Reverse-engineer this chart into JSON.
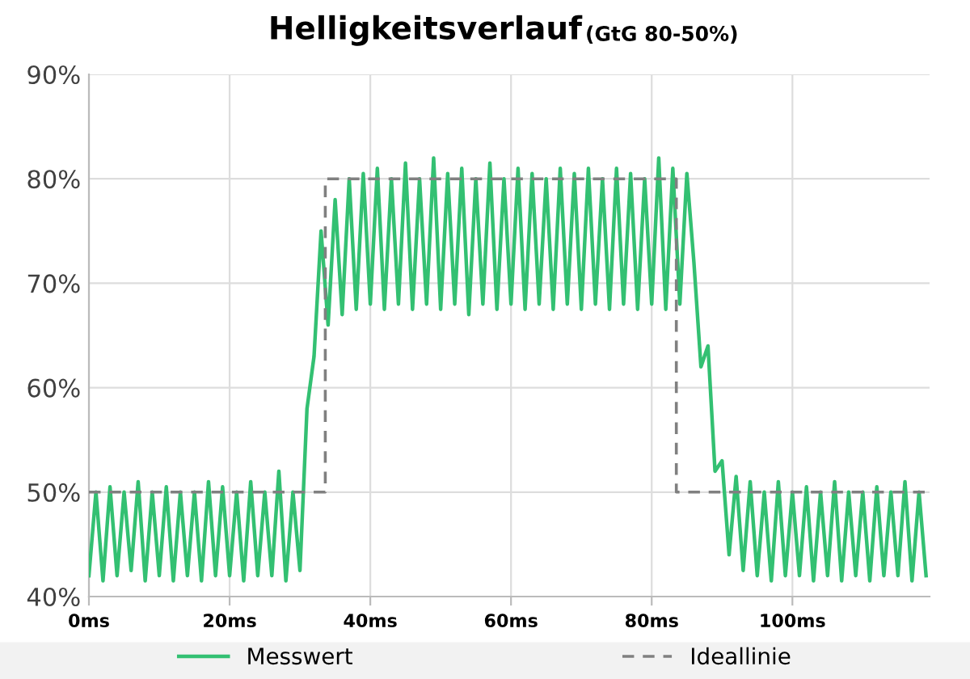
{
  "chart_data": {
    "type": "line",
    "title": "Helligkeitsverlauf",
    "subtitle": "(GtG 80-50%)",
    "xlim": [
      0,
      119.5
    ],
    "ylim": [
      40,
      90
    ],
    "xticks": [
      {
        "value": 0,
        "label": "0ms"
      },
      {
        "value": 20,
        "label": "20ms"
      },
      {
        "value": 40,
        "label": "40ms"
      },
      {
        "value": 60,
        "label": "60ms"
      },
      {
        "value": 80,
        "label": "80ms"
      },
      {
        "value": 100,
        "label": "100ms"
      }
    ],
    "yticks": [
      {
        "value": 40,
        "label": "40%"
      },
      {
        "value": 50,
        "label": "50%"
      },
      {
        "value": 60,
        "label": "60%"
      },
      {
        "value": 70,
        "label": "70%"
      },
      {
        "value": 80,
        "label": "80%"
      },
      {
        "value": 90,
        "label": "90%"
      }
    ],
    "grid": true,
    "legend": "bottom",
    "series": [
      {
        "name": "Messwert",
        "color": "#33c072",
        "line_style": "solid",
        "x": [
          0,
          1,
          2,
          3,
          4,
          5,
          6,
          7,
          8,
          9,
          10,
          11,
          12,
          13,
          14,
          15,
          16,
          17,
          18,
          19,
          20,
          21,
          22,
          23,
          24,
          25,
          26,
          27,
          28,
          29,
          30,
          31,
          32,
          33,
          34,
          35,
          36,
          37,
          38,
          39,
          40,
          41,
          42,
          43,
          44,
          45,
          46,
          47,
          48,
          49,
          50,
          51,
          52,
          53,
          54,
          55,
          56,
          57,
          58,
          59,
          60,
          61,
          62,
          63,
          64,
          65,
          66,
          67,
          68,
          69,
          70,
          71,
          72,
          73,
          74,
          75,
          76,
          77,
          78,
          79,
          80,
          81,
          82,
          83,
          84,
          85,
          86,
          87,
          88,
          89,
          90,
          91,
          92,
          93,
          94,
          95,
          96,
          97,
          98,
          99,
          100,
          101,
          102,
          103,
          104,
          105,
          106,
          107,
          108,
          109,
          110,
          111,
          112,
          113,
          114,
          115,
          116,
          117,
          118,
          119
        ],
        "values": [
          42,
          50,
          41.5,
          50.5,
          42,
          50,
          42.5,
          51,
          41.5,
          50,
          42,
          50.5,
          41.5,
          50,
          42,
          50,
          41.5,
          51,
          42,
          50.5,
          42,
          50,
          41.5,
          51,
          42,
          50,
          42,
          52,
          41.5,
          50,
          42.5,
          58,
          63,
          75,
          66,
          78,
          67,
          80,
          67.5,
          80.5,
          68,
          81,
          67.5,
          80,
          68,
          81.5,
          67.5,
          80,
          68,
          82,
          67.5,
          80.5,
          68,
          81,
          67,
          80,
          68,
          81.5,
          67.5,
          80,
          68,
          81,
          67.5,
          80.5,
          68,
          80,
          67.5,
          81,
          68,
          80.5,
          67.5,
          81,
          68,
          80,
          67.5,
          81,
          68,
          80.5,
          67.5,
          80,
          68,
          82,
          67.5,
          81,
          68,
          80.5,
          72,
          62,
          64,
          52,
          53,
          44,
          51.5,
          42.5,
          51,
          42,
          50,
          41.5,
          51,
          42,
          50,
          42,
          50.5,
          41.5,
          50,
          42,
          51,
          41.5,
          50,
          42,
          50,
          41.5,
          50.5,
          42,
          50,
          42,
          51,
          41.5,
          50,
          42
        ]
      },
      {
        "name": "Ideallinie",
        "color": "#808080",
        "line_style": "dashed",
        "x": [
          0,
          33.6,
          33.6,
          83.5,
          83.5,
          119.5
        ],
        "values": [
          50,
          50,
          80,
          80,
          50,
          50
        ]
      }
    ]
  }
}
